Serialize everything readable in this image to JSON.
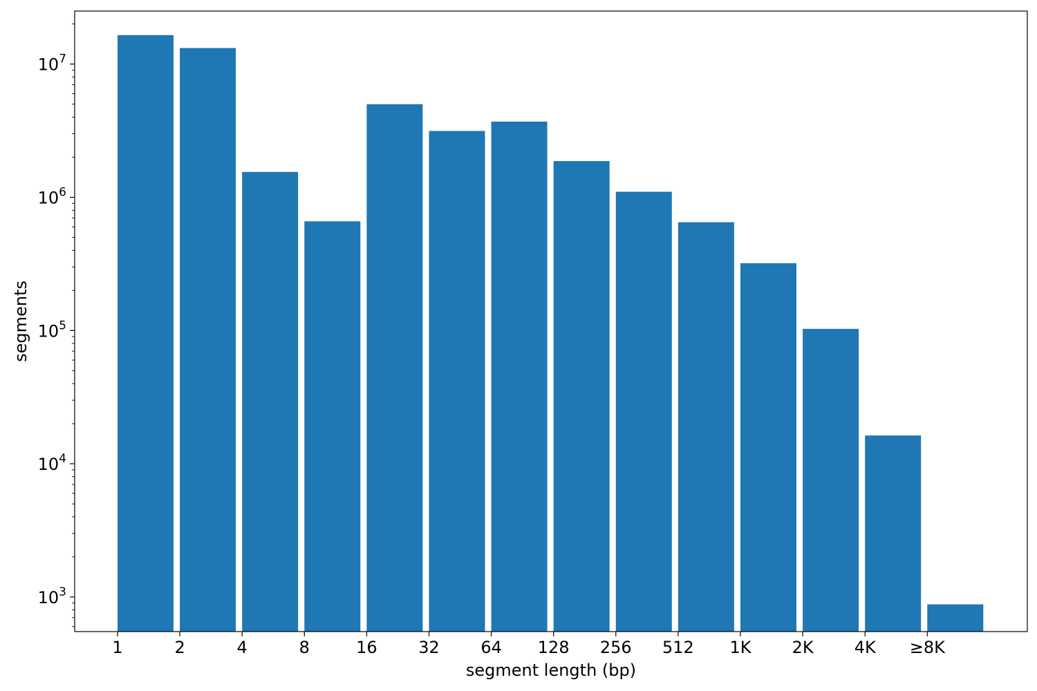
{
  "chart_data": {
    "type": "bar",
    "title": "",
    "xlabel": "segment length (bp)",
    "ylabel": "segments",
    "y_scale": "log",
    "ylim": [
      550,
      25000000
    ],
    "x_tick_labels": [
      "1",
      "2",
      "4",
      "8",
      "16",
      "32",
      "64",
      "128",
      "256",
      "512",
      "1K",
      "2K",
      "4K",
      "≥8K"
    ],
    "bins": [
      {
        "from": "1",
        "to": "2"
      },
      {
        "from": "2",
        "to": "4"
      },
      {
        "from": "4",
        "to": "8"
      },
      {
        "from": "8",
        "to": "16"
      },
      {
        "from": "16",
        "to": "32"
      },
      {
        "from": "32",
        "to": "64"
      },
      {
        "from": "64",
        "to": "128"
      },
      {
        "from": "128",
        "to": "256"
      },
      {
        "from": "256",
        "to": "512"
      },
      {
        "from": "512",
        "to": "1K"
      },
      {
        "from": "1K",
        "to": "2K"
      },
      {
        "from": "2K",
        "to": "4K"
      },
      {
        "from": "4K",
        "to": "≥8K"
      },
      {
        "from": "≥8K",
        "to": ""
      }
    ],
    "values": [
      16500000,
      13200000,
      1550000,
      660000,
      5000000,
      3150000,
      3700000,
      1870000,
      1100000,
      650000,
      320000,
      103000,
      16300,
      880
    ],
    "y_ticks": [
      {
        "value": 1000,
        "base": "10",
        "exp": "3"
      },
      {
        "value": 10000,
        "base": "10",
        "exp": "4"
      },
      {
        "value": 100000,
        "base": "10",
        "exp": "5"
      },
      {
        "value": 1000000,
        "base": "10",
        "exp": "6"
      },
      {
        "value": 10000000,
        "base": "10",
        "exp": "7"
      }
    ],
    "bar_color": "#1f77b4",
    "grid": false,
    "legend": "none"
  }
}
